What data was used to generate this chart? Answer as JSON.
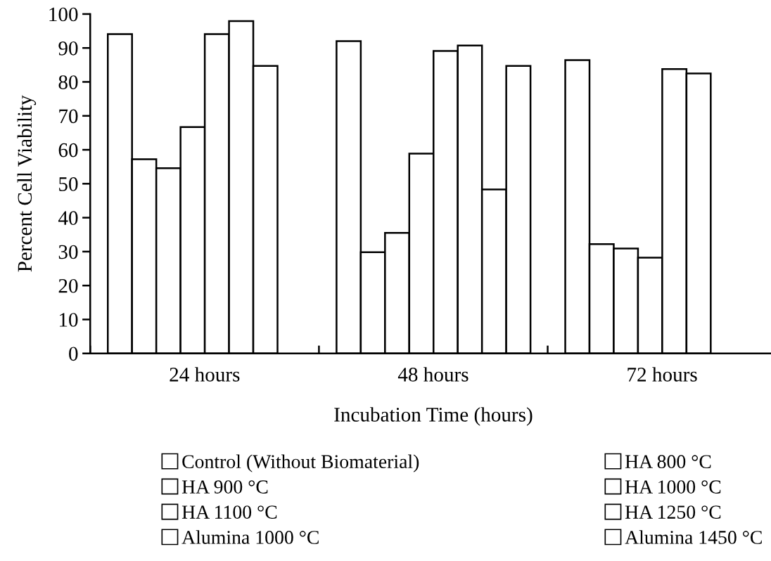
{
  "chart_data": {
    "type": "bar",
    "xlabel": "Incubation Time (hours)",
    "ylabel": "Percent Cell Viability",
    "categories": [
      "24 hours",
      "48 hours",
      "72 hours"
    ],
    "ylim": [
      0,
      100
    ],
    "yticks": [
      0,
      10,
      20,
      30,
      40,
      50,
      60,
      70,
      80,
      90,
      100
    ],
    "grid": false,
    "legend": "bottom",
    "series": [
      {
        "name": "Control (Without Biomaterial)",
        "color": "#ffffff",
        "values": [
          94.1,
          92.0,
          86.4
        ]
      },
      {
        "name": "HA 800 °C",
        "color": "#ffffff",
        "values": [
          57.2,
          29.8,
          32.2
        ]
      },
      {
        "name": "HA 900 °C",
        "color": "#ffffff",
        "values": [
          54.6,
          35.5,
          30.9
        ]
      },
      {
        "name": "HA 1000 °C",
        "color": "#ffffff",
        "values": [
          66.7,
          58.9,
          28.2
        ]
      },
      {
        "name": "HA 1100 °C",
        "color": "#ffffff",
        "values": [
          94.1,
          89.1,
          83.8
        ]
      },
      {
        "name": "HA 1250 °C",
        "color": "#ffffff",
        "values": [
          97.9,
          90.7,
          82.5
        ]
      },
      {
        "name": "Alumina 1000 °C",
        "color": "#ffffff",
        "values": [
          84.7,
          48.3,
          null
        ]
      },
      {
        "name": "Alumina 1450 °C",
        "color": "#ffffff",
        "values": [
          null,
          84.7,
          null
        ]
      }
    ]
  }
}
